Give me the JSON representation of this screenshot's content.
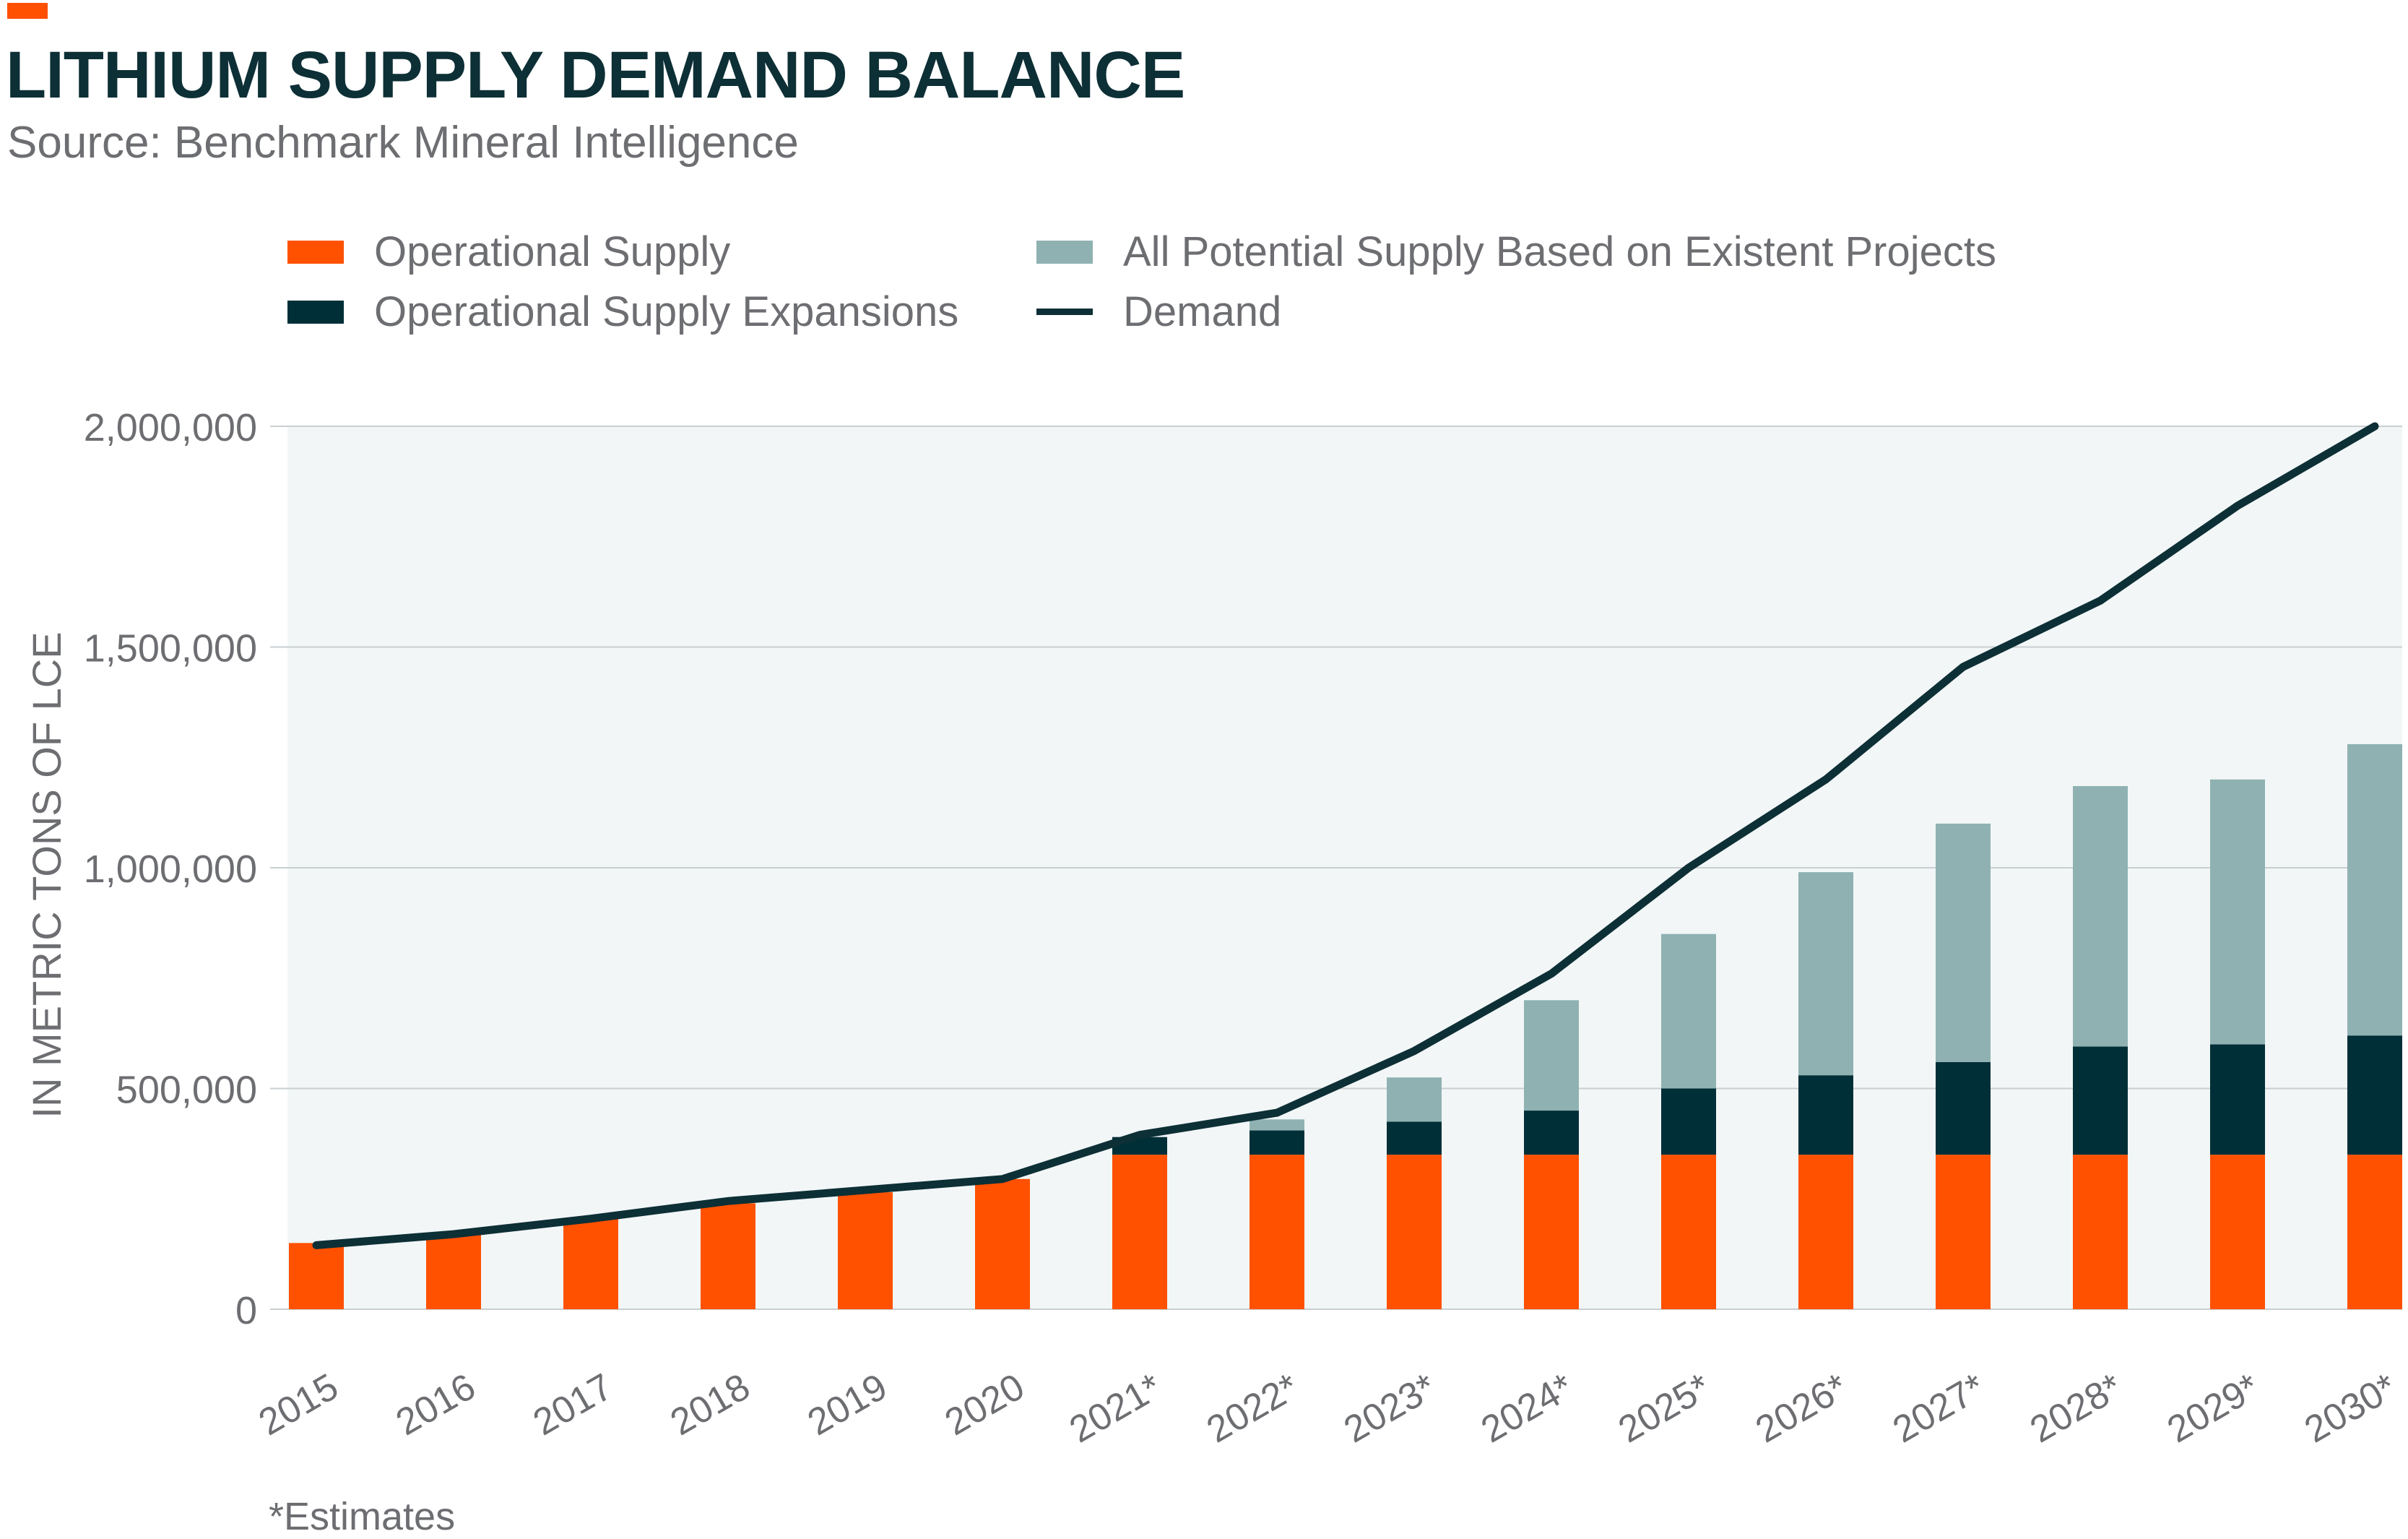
{
  "header": {
    "title": "LITHIUM SUPPLY DEMAND BALANCE",
    "subtitle": "Source: Benchmark Mineral Intelligence"
  },
  "legend": [
    {
      "label": "Operational Supply",
      "color": "#ff5100",
      "kind": "swatch"
    },
    {
      "label": "Operational Supply Expansions",
      "color": "#002f38",
      "kind": "swatch"
    },
    {
      "label": "All Potential Supply Based on Existent Projects",
      "color": "#8fb1b1",
      "kind": "swatch"
    },
    {
      "label": "Demand",
      "color": "#0d2f36",
      "kind": "line"
    }
  ],
  "footnote": "*Estimates",
  "chart_data": {
    "type": "bar",
    "stacked": true,
    "categories": [
      "2015",
      "2016",
      "2017",
      "2018",
      "2019",
      "2020",
      "2021*",
      "2022*",
      "2023*",
      "2024*",
      "2025*",
      "2026*",
      "2027*",
      "2028*",
      "2029*",
      "2030*"
    ],
    "ylabel": "IN METRIC TONS OF LCE",
    "ylim": [
      0,
      2000000
    ],
    "yticks": [
      0,
      500000,
      1000000,
      1500000,
      2000000
    ],
    "ytick_labels": [
      "0",
      "500,000",
      "1,000,000",
      "1,500,000",
      "2,000,000"
    ],
    "grid": true,
    "legend_position": "top",
    "plot_background": "#f2f6f7",
    "series": [
      {
        "name": "Operational Supply",
        "type": "bar",
        "color": "#ff5100",
        "values": [
          150000,
          170000,
          205000,
          240000,
          265000,
          295000,
          350000,
          350000,
          350000,
          350000,
          350000,
          350000,
          350000,
          350000,
          350000,
          350000
        ]
      },
      {
        "name": "Operational Supply Expansions",
        "type": "bar",
        "color": "#002f38",
        "values": [
          0,
          0,
          0,
          0,
          0,
          0,
          40000,
          55000,
          75000,
          100000,
          150000,
          180000,
          210000,
          245000,
          250000,
          270000
        ]
      },
      {
        "name": "All Potential Supply Based on Existent Projects",
        "type": "bar",
        "color": "#8fb1b1",
        "values": [
          0,
          0,
          0,
          0,
          0,
          0,
          0,
          25000,
          100000,
          250000,
          350000,
          460000,
          540000,
          590000,
          600000,
          660000
        ]
      },
      {
        "name": "Demand",
        "type": "line",
        "color": "#0d2f36",
        "values": [
          145000,
          170000,
          205000,
          245000,
          270000,
          295000,
          395000,
          445000,
          585000,
          760000,
          1000000,
          1200000,
          1455000,
          1605000,
          1820000,
          2000000
        ]
      }
    ]
  }
}
